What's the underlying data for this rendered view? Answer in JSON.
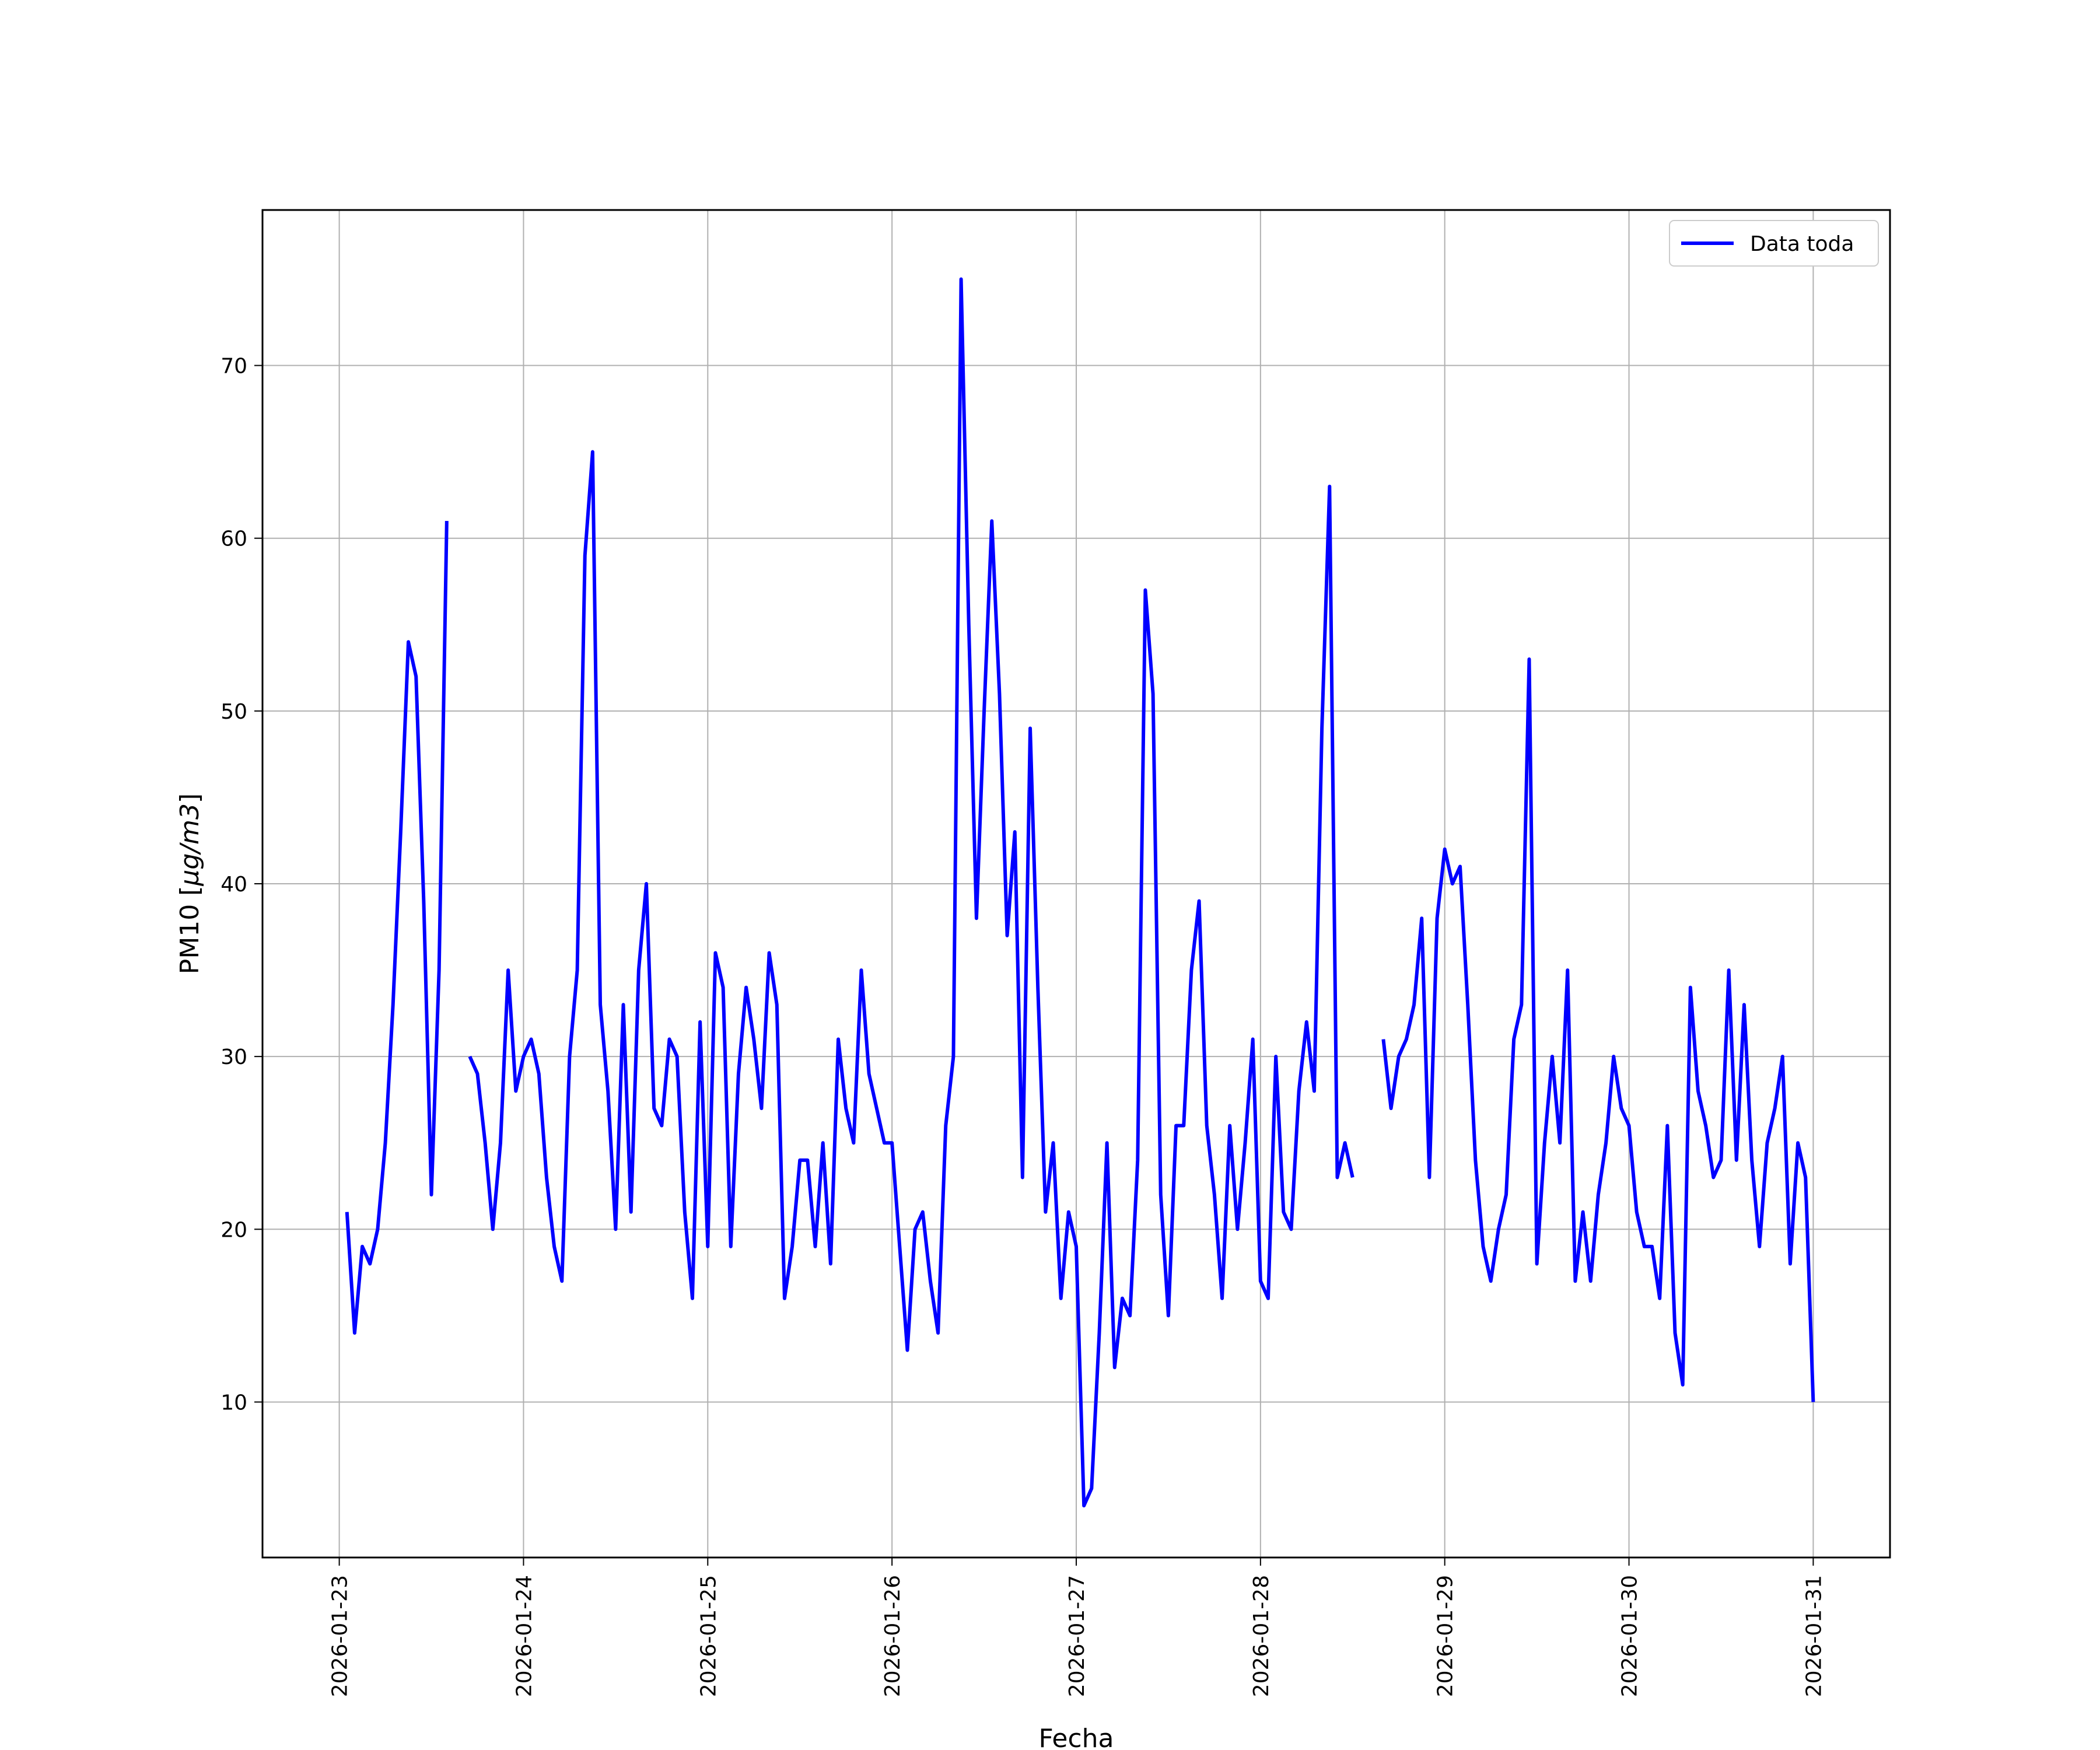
{
  "chart_data": {
    "type": "line",
    "title": "",
    "xlabel": "Fecha",
    "ylabel": "PM10 [μg/m3]",
    "ylabel_math": "μg/m3",
    "ylabel_prefix": "PM10 [",
    "ylabel_suffix": "]",
    "xlim": [
      "2026-01-22 14:00",
      "2026-01-31 10:00"
    ],
    "ylim": [
      1,
      79
    ],
    "xticks": [
      "2026-01-23",
      "2026-01-24",
      "2026-01-25",
      "2026-01-26",
      "2026-01-27",
      "2026-01-28",
      "2026-01-29",
      "2026-01-30",
      "2026-01-31"
    ],
    "yticks": [
      10,
      20,
      30,
      40,
      50,
      60,
      70
    ],
    "grid": true,
    "legend_position": "top-right",
    "series": [
      {
        "name": "Data toda",
        "color": "#0000ff",
        "points": [
          [
            "2026-01-23 01:00",
            21
          ],
          [
            "2026-01-23 02:00",
            14
          ],
          [
            "2026-01-23 03:00",
            19
          ],
          [
            "2026-01-23 04:00",
            18
          ],
          [
            "2026-01-23 05:00",
            20
          ],
          [
            "2026-01-23 06:00",
            25
          ],
          [
            "2026-01-23 07:00",
            33
          ],
          [
            "2026-01-23 08:00",
            43
          ],
          [
            "2026-01-23 09:00",
            54
          ],
          [
            "2026-01-23 10:00",
            52
          ],
          [
            "2026-01-23 11:00",
            39
          ],
          [
            "2026-01-23 12:00",
            22
          ],
          [
            "2026-01-23 13:00",
            35
          ],
          [
            "2026-01-23 14:00",
            61
          ],
          [
            "2026-01-23 15:00",
            null
          ],
          [
            "2026-01-23 16:00",
            null
          ],
          [
            "2026-01-23 17:00",
            30
          ],
          [
            "2026-01-23 18:00",
            29
          ],
          [
            "2026-01-23 19:00",
            25
          ],
          [
            "2026-01-23 20:00",
            20
          ],
          [
            "2026-01-23 21:00",
            25
          ],
          [
            "2026-01-23 22:00",
            35
          ],
          [
            "2026-01-23 23:00",
            28
          ],
          [
            "2026-01-24 00:00",
            30
          ],
          [
            "2026-01-24 01:00",
            31
          ],
          [
            "2026-01-24 02:00",
            29
          ],
          [
            "2026-01-24 03:00",
            23
          ],
          [
            "2026-01-24 04:00",
            19
          ],
          [
            "2026-01-24 05:00",
            17
          ],
          [
            "2026-01-24 06:00",
            30
          ],
          [
            "2026-01-24 07:00",
            35
          ],
          [
            "2026-01-24 08:00",
            59
          ],
          [
            "2026-01-24 09:00",
            65
          ],
          [
            "2026-01-24 10:00",
            33
          ],
          [
            "2026-01-24 11:00",
            28
          ],
          [
            "2026-01-24 12:00",
            20
          ],
          [
            "2026-01-24 13:00",
            33
          ],
          [
            "2026-01-24 14:00",
            21
          ],
          [
            "2026-01-24 15:00",
            35
          ],
          [
            "2026-01-24 16:00",
            40
          ],
          [
            "2026-01-24 17:00",
            27
          ],
          [
            "2026-01-24 18:00",
            26
          ],
          [
            "2026-01-24 19:00",
            31
          ],
          [
            "2026-01-24 20:00",
            30
          ],
          [
            "2026-01-24 21:00",
            21
          ],
          [
            "2026-01-24 22:00",
            16
          ],
          [
            "2026-01-24 23:00",
            32
          ],
          [
            "2026-01-25 00:00",
            19
          ],
          [
            "2026-01-25 01:00",
            36
          ],
          [
            "2026-01-25 02:00",
            34
          ],
          [
            "2026-01-25 03:00",
            19
          ],
          [
            "2026-01-25 04:00",
            29
          ],
          [
            "2026-01-25 05:00",
            34
          ],
          [
            "2026-01-25 06:00",
            31
          ],
          [
            "2026-01-25 07:00",
            27
          ],
          [
            "2026-01-25 08:00",
            36
          ],
          [
            "2026-01-25 09:00",
            33
          ],
          [
            "2026-01-25 10:00",
            16
          ],
          [
            "2026-01-25 11:00",
            19
          ],
          [
            "2026-01-25 12:00",
            24
          ],
          [
            "2026-01-25 13:00",
            24
          ],
          [
            "2026-01-25 14:00",
            19
          ],
          [
            "2026-01-25 15:00",
            25
          ],
          [
            "2026-01-25 16:00",
            18
          ],
          [
            "2026-01-25 17:00",
            31
          ],
          [
            "2026-01-25 18:00",
            27
          ],
          [
            "2026-01-25 19:00",
            25
          ],
          [
            "2026-01-25 20:00",
            35
          ],
          [
            "2026-01-25 21:00",
            29
          ],
          [
            "2026-01-25 22:00",
            27
          ],
          [
            "2026-01-25 23:00",
            25
          ],
          [
            "2026-01-26 00:00",
            25
          ],
          [
            "2026-01-26 01:00",
            19
          ],
          [
            "2026-01-26 02:00",
            13
          ],
          [
            "2026-01-26 03:00",
            20
          ],
          [
            "2026-01-26 04:00",
            21
          ],
          [
            "2026-01-26 05:00",
            17
          ],
          [
            "2026-01-26 06:00",
            14
          ],
          [
            "2026-01-26 07:00",
            26
          ],
          [
            "2026-01-26 08:00",
            30
          ],
          [
            "2026-01-26 09:00",
            75
          ],
          [
            "2026-01-26 10:00",
            55
          ],
          [
            "2026-01-26 11:00",
            38
          ],
          [
            "2026-01-26 12:00",
            50
          ],
          [
            "2026-01-26 13:00",
            61
          ],
          [
            "2026-01-26 14:00",
            51
          ],
          [
            "2026-01-26 15:00",
            37
          ],
          [
            "2026-01-26 16:00",
            43
          ],
          [
            "2026-01-26 17:00",
            23
          ],
          [
            "2026-01-26 18:00",
            49
          ],
          [
            "2026-01-26 19:00",
            34
          ],
          [
            "2026-01-26 20:00",
            21
          ],
          [
            "2026-01-26 21:00",
            25
          ],
          [
            "2026-01-26 22:00",
            16
          ],
          [
            "2026-01-26 23:00",
            21
          ],
          [
            "2026-01-27 00:00",
            19
          ],
          [
            "2026-01-27 01:00",
            4
          ],
          [
            "2026-01-27 02:00",
            5
          ],
          [
            "2026-01-27 03:00",
            14
          ],
          [
            "2026-01-27 04:00",
            25
          ],
          [
            "2026-01-27 05:00",
            12
          ],
          [
            "2026-01-27 06:00",
            16
          ],
          [
            "2026-01-27 07:00",
            15
          ],
          [
            "2026-01-27 08:00",
            24
          ],
          [
            "2026-01-27 09:00",
            57
          ],
          [
            "2026-01-27 10:00",
            51
          ],
          [
            "2026-01-27 11:00",
            22
          ],
          [
            "2026-01-27 12:00",
            15
          ],
          [
            "2026-01-27 13:00",
            26
          ],
          [
            "2026-01-27 14:00",
            26
          ],
          [
            "2026-01-27 15:00",
            35
          ],
          [
            "2026-01-27 16:00",
            39
          ],
          [
            "2026-01-27 17:00",
            26
          ],
          [
            "2026-01-27 18:00",
            22
          ],
          [
            "2026-01-27 19:00",
            16
          ],
          [
            "2026-01-27 20:00",
            26
          ],
          [
            "2026-01-27 21:00",
            20
          ],
          [
            "2026-01-27 22:00",
            25
          ],
          [
            "2026-01-27 23:00",
            31
          ],
          [
            "2026-01-28 00:00",
            17
          ],
          [
            "2026-01-28 01:00",
            16
          ],
          [
            "2026-01-28 02:00",
            30
          ],
          [
            "2026-01-28 03:00",
            21
          ],
          [
            "2026-01-28 04:00",
            20
          ],
          [
            "2026-01-28 05:00",
            28
          ],
          [
            "2026-01-28 06:00",
            32
          ],
          [
            "2026-01-28 07:00",
            28
          ],
          [
            "2026-01-28 08:00",
            49
          ],
          [
            "2026-01-28 09:00",
            63
          ],
          [
            "2026-01-28 10:00",
            23
          ],
          [
            "2026-01-28 11:00",
            25
          ],
          [
            "2026-01-28 12:00",
            23
          ],
          [
            "2026-01-28 13:00",
            null
          ],
          [
            "2026-01-28 14:00",
            null
          ],
          [
            "2026-01-28 15:00",
            null
          ],
          [
            "2026-01-28 16:00",
            31
          ],
          [
            "2026-01-28 17:00",
            27
          ],
          [
            "2026-01-28 18:00",
            30
          ],
          [
            "2026-01-28 19:00",
            31
          ],
          [
            "2026-01-28 20:00",
            33
          ],
          [
            "2026-01-28 21:00",
            38
          ],
          [
            "2026-01-28 22:00",
            23
          ],
          [
            "2026-01-28 23:00",
            38
          ],
          [
            "2026-01-29 00:00",
            42
          ],
          [
            "2026-01-29 01:00",
            40
          ],
          [
            "2026-01-29 02:00",
            41
          ],
          [
            "2026-01-29 03:00",
            33
          ],
          [
            "2026-01-29 04:00",
            24
          ],
          [
            "2026-01-29 05:00",
            19
          ],
          [
            "2026-01-29 06:00",
            17
          ],
          [
            "2026-01-29 07:00",
            20
          ],
          [
            "2026-01-29 08:00",
            22
          ],
          [
            "2026-01-29 09:00",
            31
          ],
          [
            "2026-01-29 10:00",
            33
          ],
          [
            "2026-01-29 11:00",
            53
          ],
          [
            "2026-01-29 12:00",
            18
          ],
          [
            "2026-01-29 13:00",
            25
          ],
          [
            "2026-01-29 14:00",
            30
          ],
          [
            "2026-01-29 15:00",
            25
          ],
          [
            "2026-01-29 16:00",
            35
          ],
          [
            "2026-01-29 17:00",
            17
          ],
          [
            "2026-01-29 18:00",
            21
          ],
          [
            "2026-01-29 19:00",
            17
          ],
          [
            "2026-01-29 20:00",
            22
          ],
          [
            "2026-01-29 21:00",
            25
          ],
          [
            "2026-01-29 22:00",
            30
          ],
          [
            "2026-01-29 23:00",
            27
          ],
          [
            "2026-01-30 00:00",
            26
          ],
          [
            "2026-01-30 01:00",
            21
          ],
          [
            "2026-01-30 02:00",
            19
          ],
          [
            "2026-01-30 03:00",
            19
          ],
          [
            "2026-01-30 04:00",
            16
          ],
          [
            "2026-01-30 05:00",
            26
          ],
          [
            "2026-01-30 06:00",
            14
          ],
          [
            "2026-01-30 07:00",
            11
          ],
          [
            "2026-01-30 08:00",
            34
          ],
          [
            "2026-01-30 09:00",
            28
          ],
          [
            "2026-01-30 10:00",
            26
          ],
          [
            "2026-01-30 11:00",
            23
          ],
          [
            "2026-01-30 12:00",
            24
          ],
          [
            "2026-01-30 13:00",
            35
          ],
          [
            "2026-01-30 14:00",
            24
          ],
          [
            "2026-01-30 15:00",
            33
          ],
          [
            "2026-01-30 16:00",
            24
          ],
          [
            "2026-01-30 17:00",
            19
          ],
          [
            "2026-01-30 18:00",
            25
          ],
          [
            "2026-01-30 19:00",
            27
          ],
          [
            "2026-01-30 20:00",
            30
          ],
          [
            "2026-01-30 21:00",
            18
          ],
          [
            "2026-01-30 22:00",
            25
          ],
          [
            "2026-01-30 23:00",
            23
          ],
          [
            "2026-01-31 00:00",
            10
          ]
        ]
      }
    ]
  }
}
